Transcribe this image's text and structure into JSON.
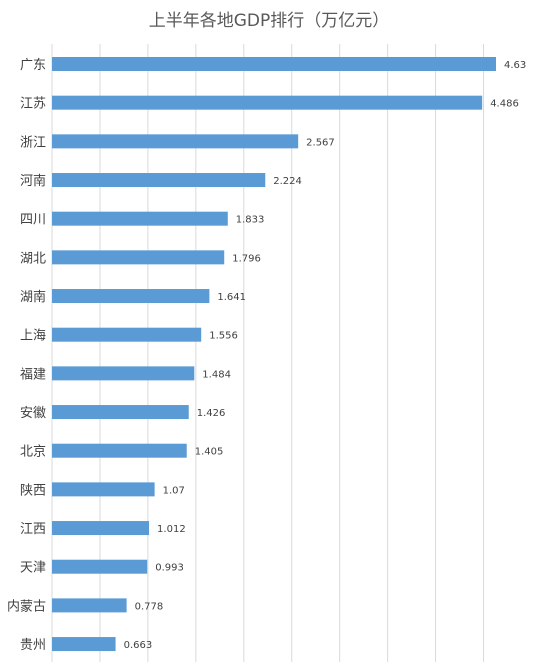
{
  "chart_data": {
    "type": "bar",
    "orientation": "horizontal",
    "title": "上半年各地GDP排行（万亿元）",
    "xlabel": "",
    "ylabel": "",
    "xlim": [
      0,
      5
    ],
    "grid": true,
    "categories": [
      "广东",
      "江苏",
      "浙江",
      "河南",
      "四川",
      "湖北",
      "湖南",
      "上海",
      "福建",
      "安徽",
      "北京",
      "陕西",
      "江西",
      "天津",
      "内蒙古",
      "贵州"
    ],
    "values": [
      4.63,
      4.486,
      2.567,
      2.224,
      1.833,
      1.796,
      1.641,
      1.556,
      1.484,
      1.426,
      1.405,
      1.07,
      1.012,
      0.993,
      0.778,
      0.663
    ],
    "value_labels": [
      "4.63",
      "4.486",
      "2.567",
      "2.224",
      "1.833",
      "1.796",
      "1.641",
      "1.556",
      "1.484",
      "1.426",
      "1.405",
      "1.07",
      "1.012",
      "0.993",
      "0.778",
      "0.663"
    ],
    "colors": {
      "bar": "#5B9BD5",
      "grid": "#D9D9D9",
      "text": "#404040",
      "title": "#595959"
    }
  }
}
